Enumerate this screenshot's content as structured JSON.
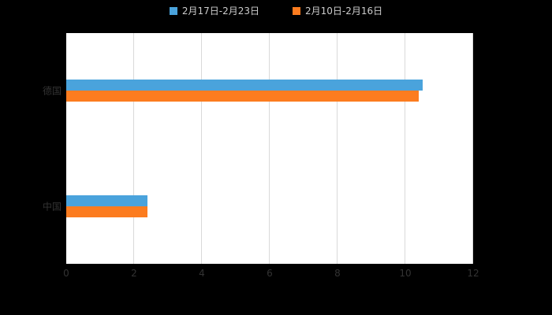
{
  "chart_data": {
    "type": "bar",
    "orientation": "horizontal",
    "title": "",
    "xlabel": "",
    "ylabel": "",
    "categories": [
      "德国",
      "中国"
    ],
    "series": [
      {
        "name": "2月17日-2月23日",
        "color": "#4aa3dc",
        "values": [
          10.5,
          2.4
        ]
      },
      {
        "name": "2月10日-2月16日",
        "color": "#fc7c1f",
        "values": [
          10.4,
          2.4
        ]
      }
    ],
    "x_ticks": [
      0,
      2,
      4,
      6,
      8,
      10,
      12
    ],
    "xlim": [
      0,
      12
    ],
    "grid": true,
    "legend_position": "top"
  },
  "legend": {
    "items": [
      {
        "label": "2月17日-2月23日",
        "color": "#4aa3dc"
      },
      {
        "label": "2月10日-2月16日",
        "color": "#fc7c1f"
      }
    ]
  },
  "colors": {
    "background": "#000000",
    "plot_background": "#ffffff",
    "gridline": "#d9d9d9",
    "axis_text": "#333333",
    "legend_text": "#cccccc"
  }
}
